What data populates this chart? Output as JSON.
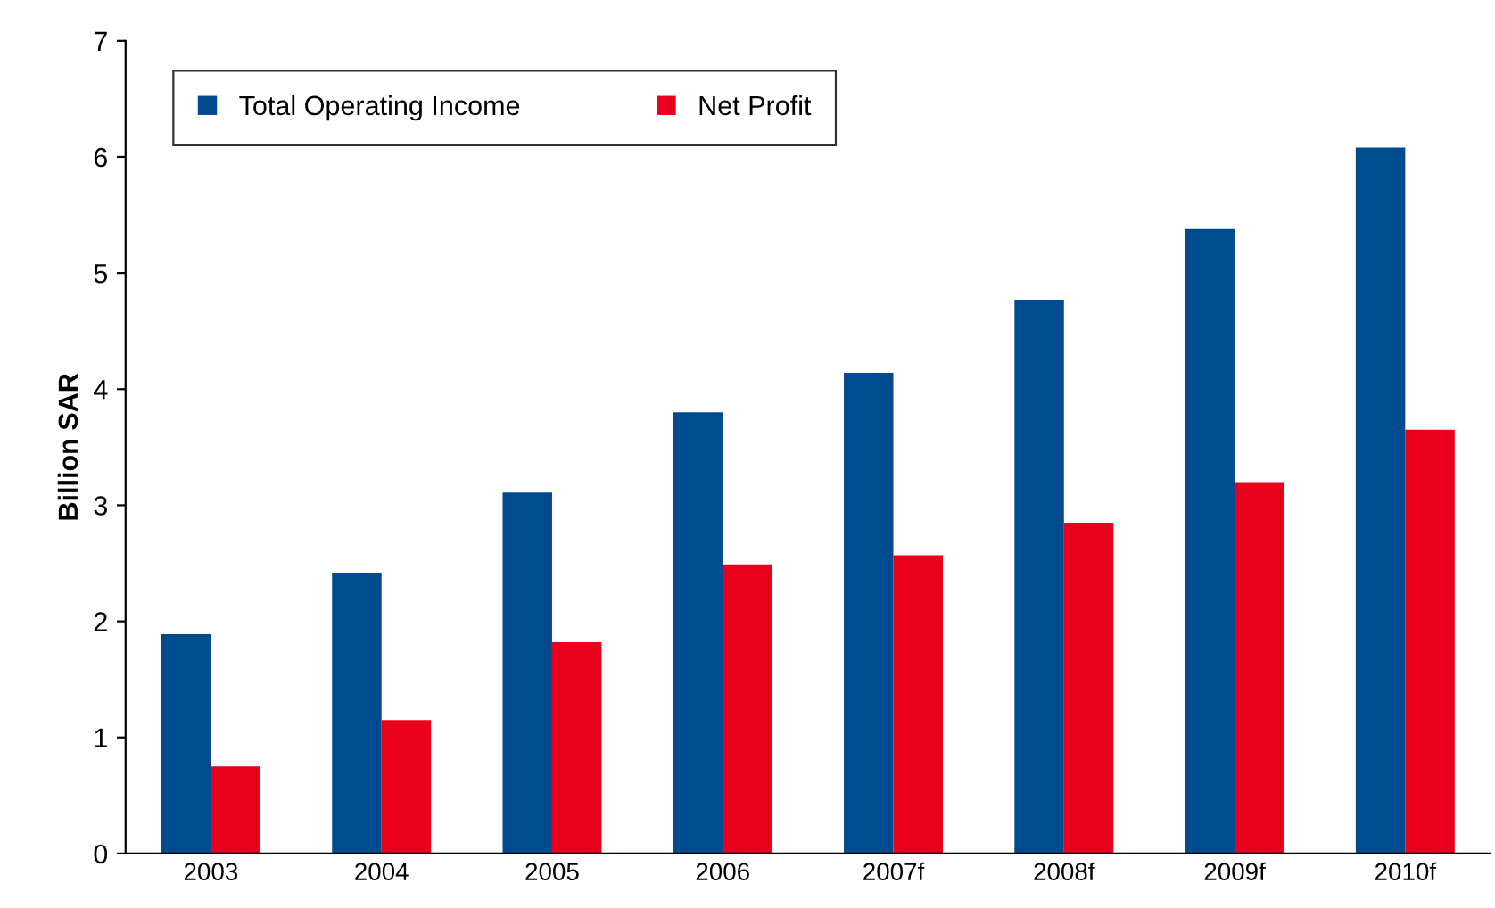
{
  "chart_data": {
    "type": "bar",
    "ylabel": "Billion SAR",
    "categories": [
      "2003",
      "2004",
      "2005",
      "2006",
      "2007f",
      "2008f",
      "2009f",
      "2010f"
    ],
    "series": [
      {
        "name": "Total Operating Income",
        "color": "#004b8d",
        "values": [
          1.89,
          2.42,
          3.11,
          3.8,
          4.14,
          4.77,
          5.38,
          6.08
        ]
      },
      {
        "name": "Net Profit",
        "color": "#e8001c",
        "values": [
          0.75,
          1.15,
          1.82,
          2.49,
          2.57,
          2.85,
          3.2,
          3.65
        ]
      }
    ],
    "ylim": [
      0,
      7
    ],
    "yticks": [
      0,
      1,
      2,
      3,
      4,
      5,
      6,
      7
    ],
    "grid": false,
    "legend": "top left"
  }
}
